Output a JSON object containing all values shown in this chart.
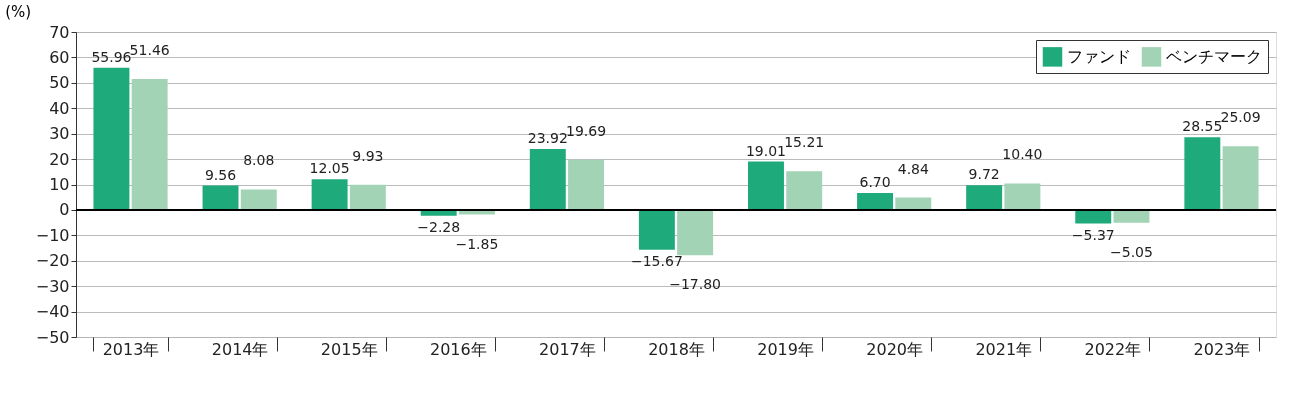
{
  "chart_data": {
    "type": "bar",
    "ylabel": "(%)",
    "categories": [
      "2013年",
      "2014年",
      "2015年",
      "2016年",
      "2017年",
      "2018年",
      "2019年",
      "2020年",
      "2021年",
      "2022年",
      "2023年"
    ],
    "series": [
      {
        "name": "ファンド",
        "color": "#1eaa7a",
        "values": [
          55.96,
          9.56,
          12.05,
          -2.28,
          23.92,
          -15.67,
          19.01,
          6.7,
          9.72,
          -5.37,
          28.55
        ],
        "value_labels": [
          "55.96",
          "9.56",
          "12.05",
          "−2.28",
          "23.92",
          "−15.67",
          "19.01",
          "6.70",
          "9.72",
          "−5.37",
          "28.55"
        ]
      },
      {
        "name": "ベンチマーク",
        "color": "#a2d3b5",
        "values": [
          51.46,
          8.08,
          9.93,
          -1.85,
          19.69,
          -17.8,
          15.21,
          4.84,
          10.4,
          -5.05,
          25.09
        ],
        "value_labels": [
          "51.46",
          "8.08",
          "9.93",
          "−1.85",
          "19.69",
          "−17.80",
          "15.21",
          "4.84",
          "10.40",
          "−5.05",
          "25.09"
        ]
      }
    ],
    "ylim": [
      -50,
      70
    ],
    "yticks": [
      -50,
      -40,
      -30,
      -20,
      -10,
      0,
      10,
      20,
      30,
      40,
      50,
      60,
      70
    ],
    "grid": "y",
    "legend": "top right",
    "ref_lines": [
      {
        "axis": "y",
        "value": 0,
        "color": "#000000"
      }
    ]
  }
}
